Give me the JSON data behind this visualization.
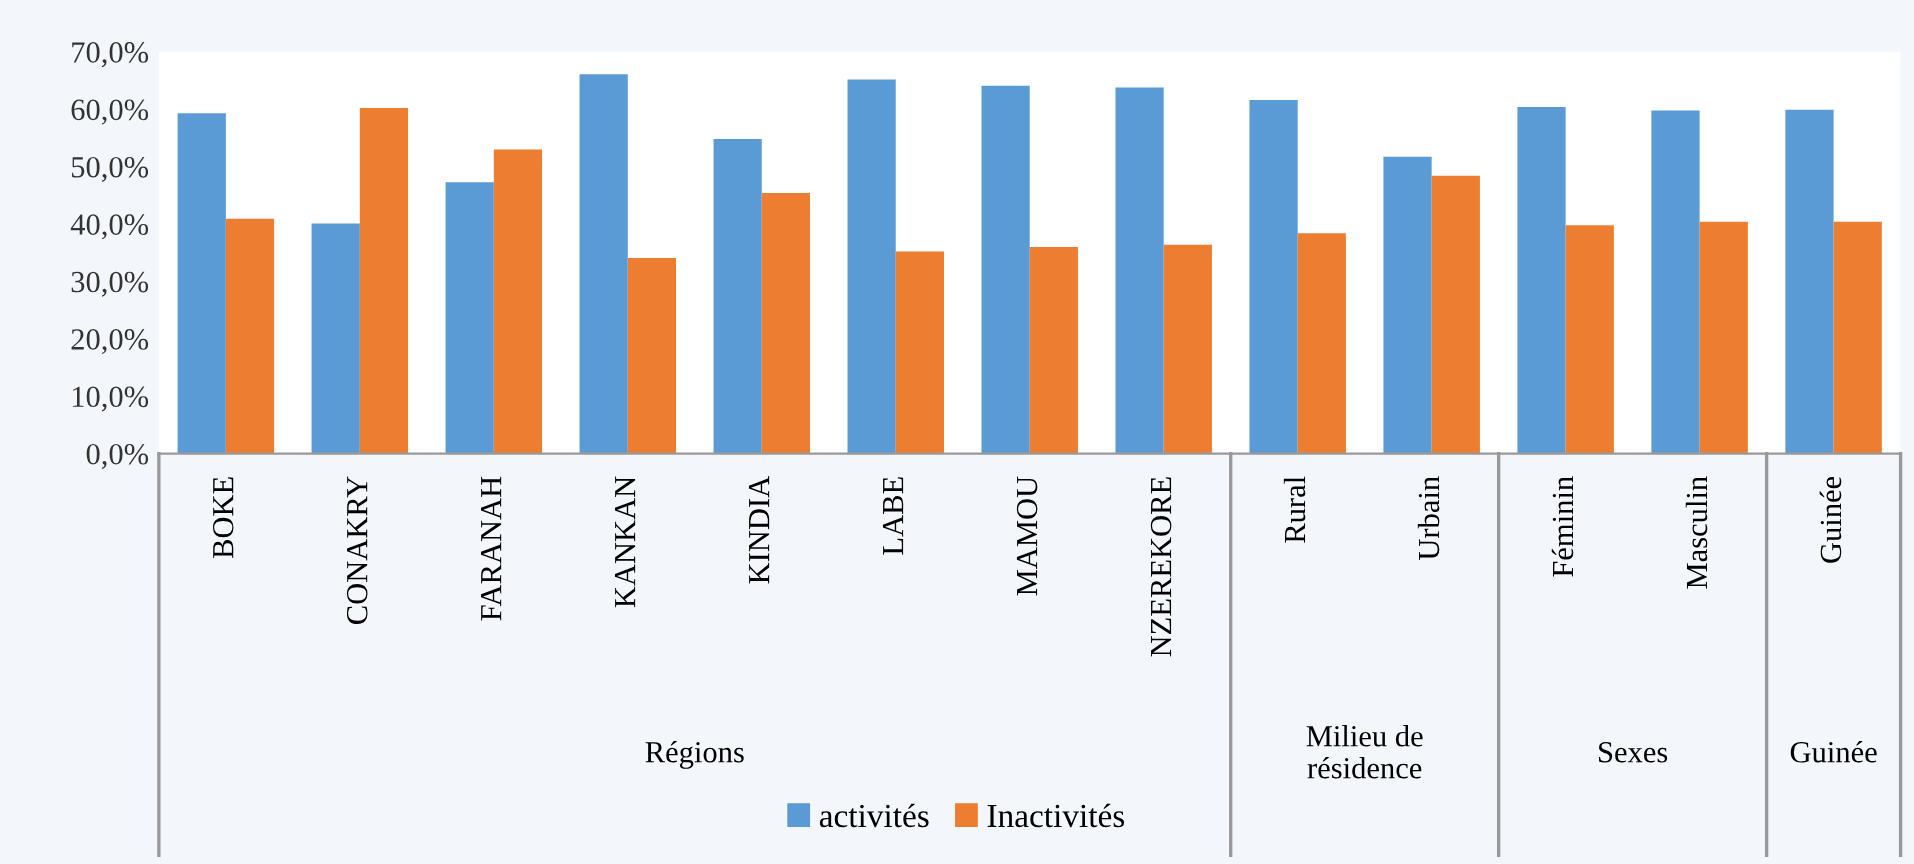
{
  "chart_data": {
    "type": "bar",
    "categories": [
      "BOKE",
      "CONAKRY",
      "FARANAH",
      "KANKAN",
      "KINDIA",
      "LABE",
      "MAMOU",
      "NZEREKORE",
      "Rural",
      "Urbain",
      "Féminin",
      "Masculin",
      "Guinée"
    ],
    "series": [
      {
        "name": "activités",
        "color": "#5b9bd5",
        "values": [
          59.3,
          40.1,
          47.3,
          66.1,
          54.8,
          65.2,
          64.1,
          63.8,
          61.6,
          51.7,
          60.4,
          59.8,
          59.9
        ]
      },
      {
        "name": "Inactivités",
        "color": "#ed7d31",
        "values": [
          40.9,
          60.2,
          53.0,
          34.1,
          45.4,
          35.2,
          36.0,
          36.4,
          38.4,
          48.4,
          39.8,
          40.4,
          40.4
        ]
      }
    ],
    "ylim": [
      0,
      70
    ],
    "yticks": [
      {
        "value": 0,
        "label": "0,0%"
      },
      {
        "value": 10,
        "label": "10,0%"
      },
      {
        "value": 20,
        "label": "20,0%"
      },
      {
        "value": 30,
        "label": "30,0%"
      },
      {
        "value": 40,
        "label": "40,0%"
      },
      {
        "value": 50,
        "label": "50,0%"
      },
      {
        "value": 60,
        "label": "60,0%"
      },
      {
        "value": 70,
        "label": "70,0%"
      }
    ],
    "annotations": [
      "Régions",
      "Milieu de\nrésidence",
      "Sexes",
      "Guinée"
    ],
    "grid": false,
    "legend": "bottom"
  }
}
